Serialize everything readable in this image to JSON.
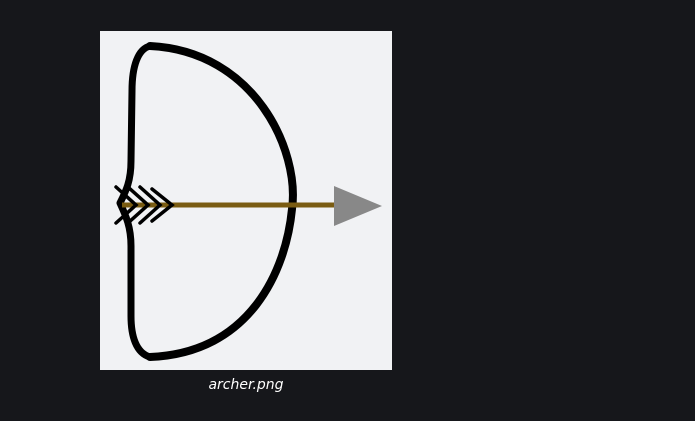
{
  "image": {
    "filename": "archer.png",
    "icon": "bow-and-arrow-icon"
  },
  "colors": {
    "page_background": "#16171b",
    "image_background": "#f1f2f4",
    "bow": "#000000",
    "arrow_shaft": "#7a5c12",
    "arrow_head": "#888888",
    "caption_text": "#ffffff"
  }
}
